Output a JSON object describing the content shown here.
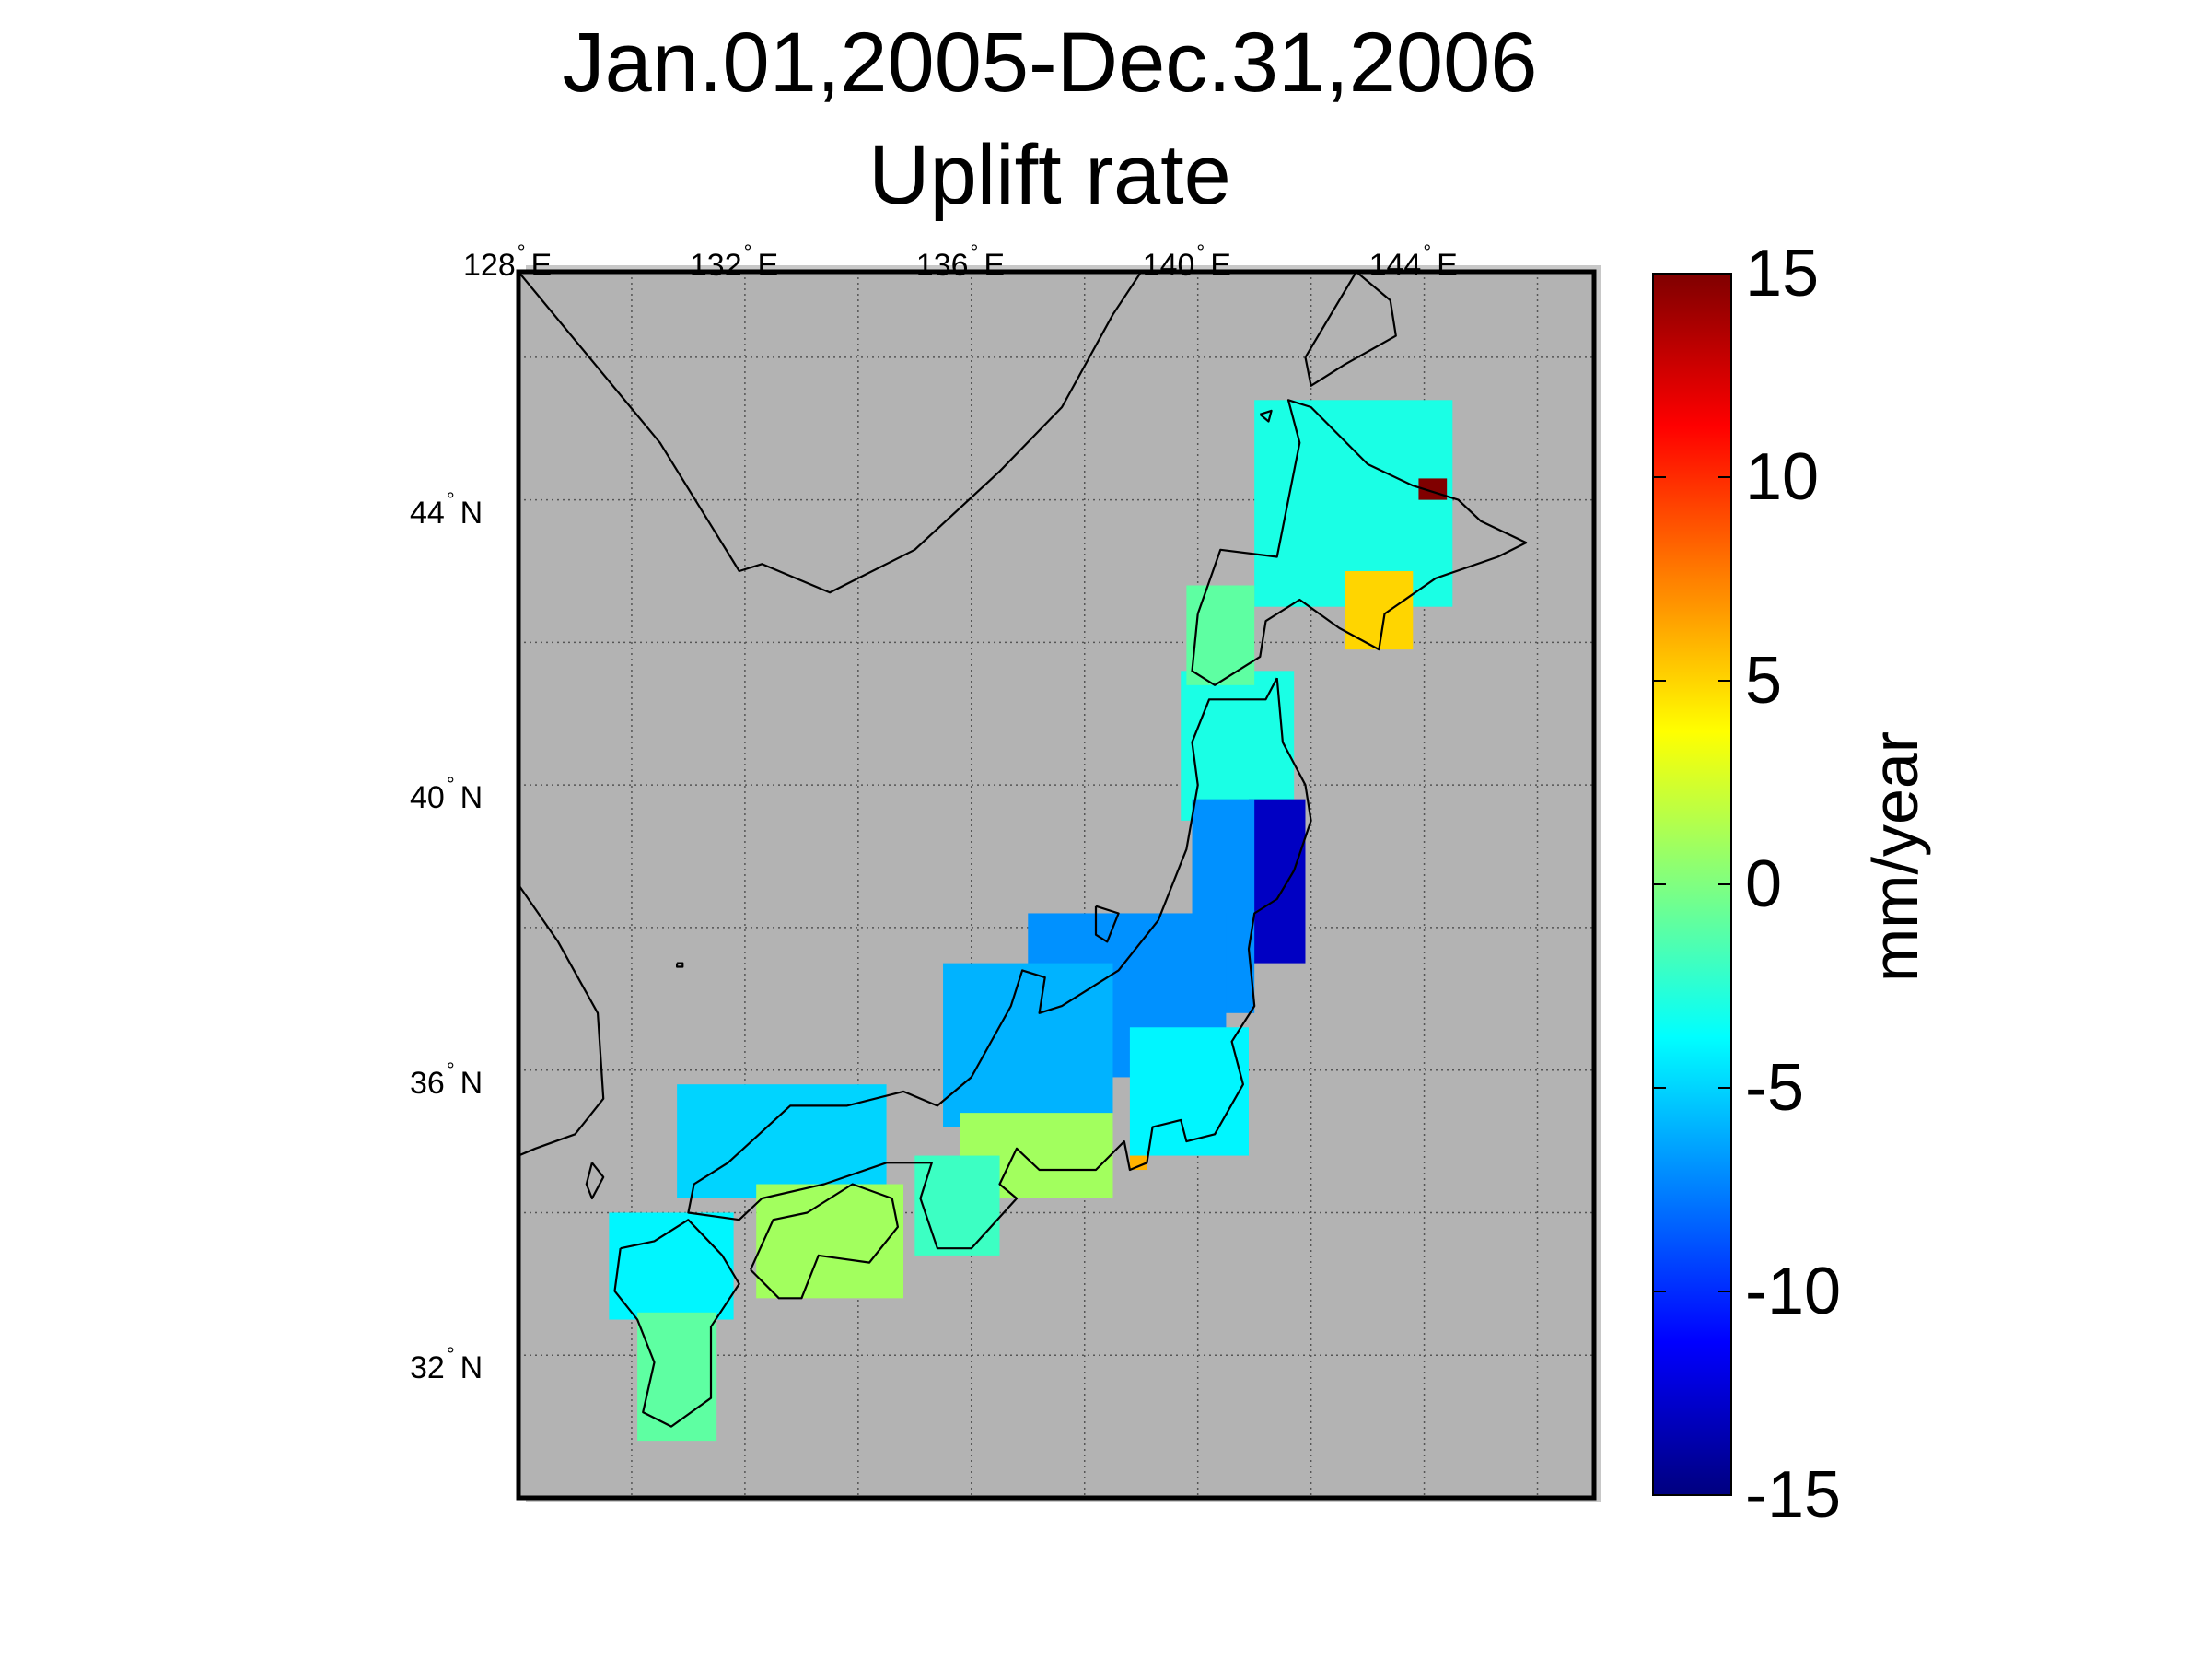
{
  "title": {
    "line1": "Jan.01,2005-Dec.31,2006",
    "line2": "Uplift rate"
  },
  "map": {
    "lon_range": [
      128,
      147
    ],
    "lat_range": [
      30.0,
      47.2
    ],
    "land_color": "#b3b3b3",
    "grid": true,
    "lon_ticks": [
      {
        "value": 128,
        "num": "128",
        "hemi": "E"
      },
      {
        "value": 132,
        "num": "132",
        "hemi": "E"
      },
      {
        "value": 136,
        "num": "136",
        "hemi": "E"
      },
      {
        "value": 140,
        "num": "140",
        "hemi": "E"
      },
      {
        "value": 144,
        "num": "144",
        "hemi": "E"
      }
    ],
    "lat_ticks": [
      {
        "value": 44,
        "num": "44",
        "hemi": "N"
      },
      {
        "value": 40,
        "num": "40",
        "hemi": "N"
      },
      {
        "value": 36,
        "num": "36",
        "hemi": "N"
      },
      {
        "value": 32,
        "num": "32",
        "hemi": "N"
      }
    ]
  },
  "colorbar": {
    "min": -15,
    "max": 15,
    "ticks": [
      "15",
      "10",
      "5",
      "0",
      "-5",
      "-10",
      "-15"
    ],
    "unit_label": "mm/year",
    "colormap": "jet"
  },
  "chart_data": {
    "type": "heatmap",
    "title": "Jan.01,2005-Dec.31,2006 Uplift rate",
    "value_label": "mm/year",
    "range": [
      -15,
      15
    ],
    "regions": [
      {
        "name_hint": "Hokkaido west/central",
        "lon": [
          141.0,
          144.5
        ],
        "lat": [
          42.5,
          45.4
        ],
        "rate": -3
      },
      {
        "name_hint": "Hokkaido southeast (Tokachi)",
        "lon": [
          142.6,
          143.8
        ],
        "lat": [
          41.9,
          43.0
        ],
        "rate": 5
      },
      {
        "name_hint": "Hokkaido northeast coast",
        "lon": [
          143.9,
          144.4
        ],
        "lat": [
          44.0,
          44.3
        ],
        "rate": 15
      },
      {
        "name_hint": "Northern Tohoku",
        "lon": [
          139.7,
          141.7
        ],
        "lat": [
          39.5,
          41.6
        ],
        "rate": -3
      },
      {
        "name_hint": "Oshima / Tsugaru",
        "lon": [
          139.8,
          141.0
        ],
        "lat": [
          41.4,
          42.8
        ],
        "rate": -1
      },
      {
        "name_hint": "Eastern Tohoku (Miyagi coast)",
        "lon": [
          140.9,
          141.9
        ],
        "lat": [
          37.5,
          39.8
        ],
        "rate": -13
      },
      {
        "name_hint": "Central Tohoku",
        "lon": [
          139.9,
          141.0
        ],
        "lat": [
          36.8,
          39.8
        ],
        "rate": -7
      },
      {
        "name_hint": "Niigata / Kanto north",
        "lon": [
          137.0,
          140.5
        ],
        "lat": [
          35.9,
          38.2
        ],
        "rate": -7
      },
      {
        "name_hint": "Chubu / Hokuriku",
        "lon": [
          135.5,
          138.5
        ],
        "lat": [
          35.2,
          37.5
        ],
        "rate": -6
      },
      {
        "name_hint": "Tokai / Ise Bay",
        "lon": [
          135.8,
          138.5
        ],
        "lat": [
          34.2,
          35.4
        ],
        "rate": 1
      },
      {
        "name_hint": "Kii Peninsula",
        "lon": [
          135.0,
          136.5
        ],
        "lat": [
          33.4,
          34.8
        ],
        "rate": -2
      },
      {
        "name_hint": "Kanto south / Boso",
        "lon": [
          138.8,
          140.9
        ],
        "lat": [
          34.8,
          36.6
        ],
        "rate": -4
      },
      {
        "name_hint": "Chugoku / San-in",
        "lon": [
          130.8,
          134.5
        ],
        "lat": [
          34.2,
          35.8
        ],
        "rate": -5
      },
      {
        "name_hint": "Shikoku",
        "lon": [
          132.2,
          134.8
        ],
        "lat": [
          32.8,
          34.4
        ],
        "rate": 1
      },
      {
        "name_hint": "Northern Kyushu",
        "lon": [
          129.6,
          131.8
        ],
        "lat": [
          32.5,
          34.0
        ],
        "rate": -4
      },
      {
        "name_hint": "Southern Kyushu",
        "lon": [
          130.1,
          131.5
        ],
        "lat": [
          30.8,
          32.6
        ],
        "rate": -1
      },
      {
        "name_hint": "Izu peninsula spot",
        "lon": [
          138.8,
          139.1
        ],
        "lat": [
          34.6,
          34.8
        ],
        "rate": 6
      }
    ]
  }
}
